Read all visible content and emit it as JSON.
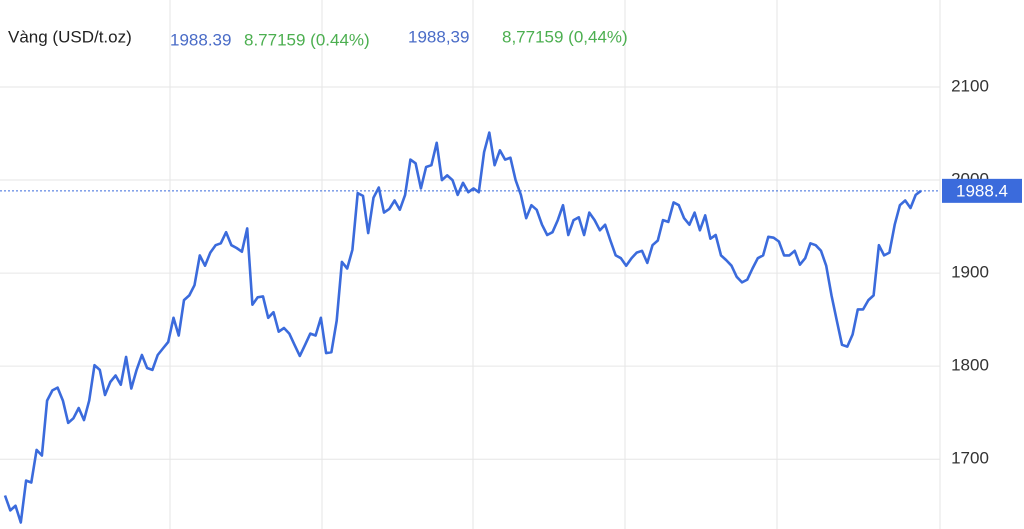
{
  "chart_data": {
    "type": "line",
    "title": "Vàng (USD/t.oz)",
    "price": "1988.39",
    "change": "8.77159 (0.44%)",
    "price_local": "1988,39",
    "change_local": "8,77159 (0,44%)",
    "current_value": 1988.4,
    "color": "#3b6bdc",
    "label_color": "#4a6cc7",
    "change_color": "#4caf50",
    "grid": true,
    "ylim": [
      1625,
      2193.5
    ],
    "yticks": [
      1700,
      1800,
      1900,
      2000,
      2100
    ],
    "series": [
      {
        "name": null,
        "color": "#3b6bdc",
        "values": [
          1661,
          1645,
          1650,
          1632,
          1677,
          1675,
          1710,
          1704,
          1763,
          1774,
          1777,
          1763,
          1739,
          1744,
          1755,
          1742,
          1763,
          1801,
          1796,
          1769,
          1783,
          1790,
          1780,
          1810,
          1776,
          1796,
          1812,
          1798,
          1796,
          1812,
          1819,
          1826,
          1852,
          1833,
          1871,
          1876,
          1887,
          1919,
          1908,
          1922,
          1930,
          1932,
          1944,
          1930,
          1927,
          1923,
          1948,
          1866,
          1874,
          1875,
          1852,
          1858,
          1837,
          1841,
          1835,
          1823,
          1811,
          1823,
          1835,
          1833,
          1852,
          1814,
          1815,
          1849,
          1912,
          1905,
          1925,
          1986,
          1983,
          1943,
          1981,
          1992,
          1965,
          1969,
          1978,
          1968,
          1984,
          2022,
          2018,
          1991,
          2014,
          2016,
          2040,
          2000,
          2005,
          2000,
          1984,
          1997,
          1987,
          1991,
          1987,
          2030,
          2051,
          2016,
          2032,
          2022,
          2024,
          2000,
          1984,
          1959,
          1973,
          1968,
          1952,
          1941,
          1944,
          1957,
          1973,
          1941,
          1957,
          1960,
          1941,
          1965,
          1957,
          1946,
          1952,
          1935,
          1919,
          1916,
          1908,
          1916,
          1922,
          1924,
          1911,
          1930,
          1935,
          1957,
          1955,
          1976,
          1973,
          1959,
          1952,
          1965,
          1946,
          1962,
          1937,
          1941,
          1919,
          1914,
          1908,
          1896,
          1890,
          1893,
          1905,
          1916,
          1919,
          1939,
          1938,
          1934,
          1919,
          1919,
          1924,
          1909,
          1916,
          1932,
          1930,
          1924,
          1908,
          1876,
          1849,
          1823,
          1821,
          1834,
          1861,
          1861,
          1871,
          1876,
          1930,
          1919,
          1922,
          1952,
          1973,
          1978,
          1970,
          1984,
          1988.4
        ]
      }
    ]
  }
}
